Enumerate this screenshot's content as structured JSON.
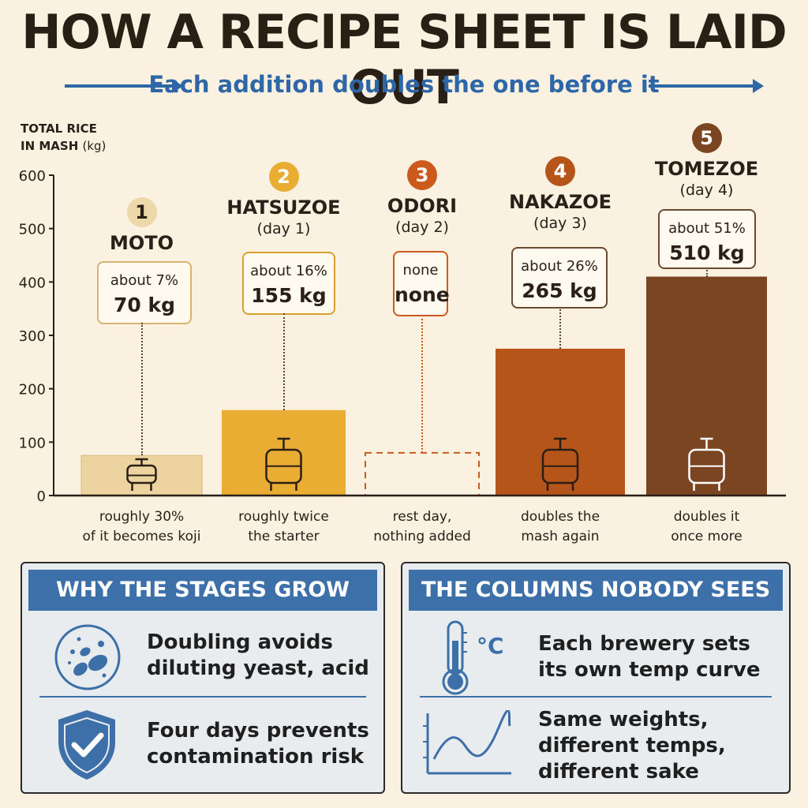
{
  "title": "HOW A RECIPE SHEET IS LAID OUT",
  "subtitle": "Each addition doubles the one before it",
  "colors": {
    "accent_blue": "#2e67a8",
    "moto": "#ecd3a0",
    "hatsuzoe": "#e9ad33",
    "odori": "#cc5a1c",
    "nakazoe": "#b5551a",
    "tomezoe": "#7a4520"
  },
  "chart_data": {
    "type": "bar",
    "ylabel": "TOTAL RICE",
    "ylabel_line2": "IN MASH",
    "ylabel_unit": "(kg)",
    "ylim": [
      0,
      600
    ],
    "yticks": [
      0,
      100,
      200,
      300,
      400,
      500,
      600
    ],
    "grid": false,
    "categories": [
      "MOTO",
      "HATSUZOE",
      "ODORI",
      "NAKAZOE",
      "TOMEZOE"
    ],
    "values": [
      75,
      160,
      80,
      275,
      410
    ],
    "stages": [
      {
        "number": "1",
        "name": "MOTO",
        "day": "",
        "share": "about 7%",
        "amount": "70 kg",
        "note": [
          "roughly 30%",
          "of it becomes koji"
        ],
        "icon": "small-tank-icon",
        "style": "solid",
        "color": "#ecd3a0",
        "value": 75
      },
      {
        "number": "2",
        "name": "HATSUZOE",
        "day": "(day 1)",
        "share": "about 16%",
        "amount": "155 kg",
        "note": [
          "roughly twice",
          "the starter"
        ],
        "icon": "tank-icon",
        "style": "solid",
        "color": "#e9ad33",
        "value": 160
      },
      {
        "number": "3",
        "name": "ODORI",
        "day": "(day 2)",
        "share": "none",
        "amount": "none",
        "note": [
          "rest day,",
          "nothing added"
        ],
        "icon": "",
        "style": "dashed",
        "color": "#cc5a1c",
        "value": 80
      },
      {
        "number": "4",
        "name": "NAKAZOE",
        "day": "(day 3)",
        "share": "about 26%",
        "amount": "265 kg",
        "note": [
          "doubles the",
          "mash again"
        ],
        "icon": "tank-icon",
        "style": "solid",
        "color": "#b5551a",
        "value": 275
      },
      {
        "number": "5",
        "name": "TOMEZOE",
        "day": "(day 4)",
        "share": "about 51%",
        "amount": "510 kg",
        "note": [
          "doubles it",
          "once more"
        ],
        "icon": "tank-icon",
        "style": "solid",
        "color": "#7a4520",
        "value": 410
      }
    ]
  },
  "panels": {
    "left": {
      "heading": "WHY THE STAGES GROW",
      "rows": [
        {
          "icon": "yeast-cells-icon",
          "lines": [
            "Doubling avoids",
            "diluting yeast, acid"
          ]
        },
        {
          "icon": "shield-check-icon",
          "lines": [
            "Four days prevents",
            "contamination risk"
          ]
        }
      ]
    },
    "right": {
      "heading": "THE COLUMNS NOBODY SEES",
      "celsius": "°C",
      "rows": [
        {
          "icon": "thermometer-icon",
          "lines": [
            "Each brewery sets",
            "its own temp curve"
          ]
        },
        {
          "icon": "temperature-curve-icon",
          "lines": [
            "Same weights,",
            "different temps,",
            "different sake"
          ]
        }
      ]
    }
  }
}
